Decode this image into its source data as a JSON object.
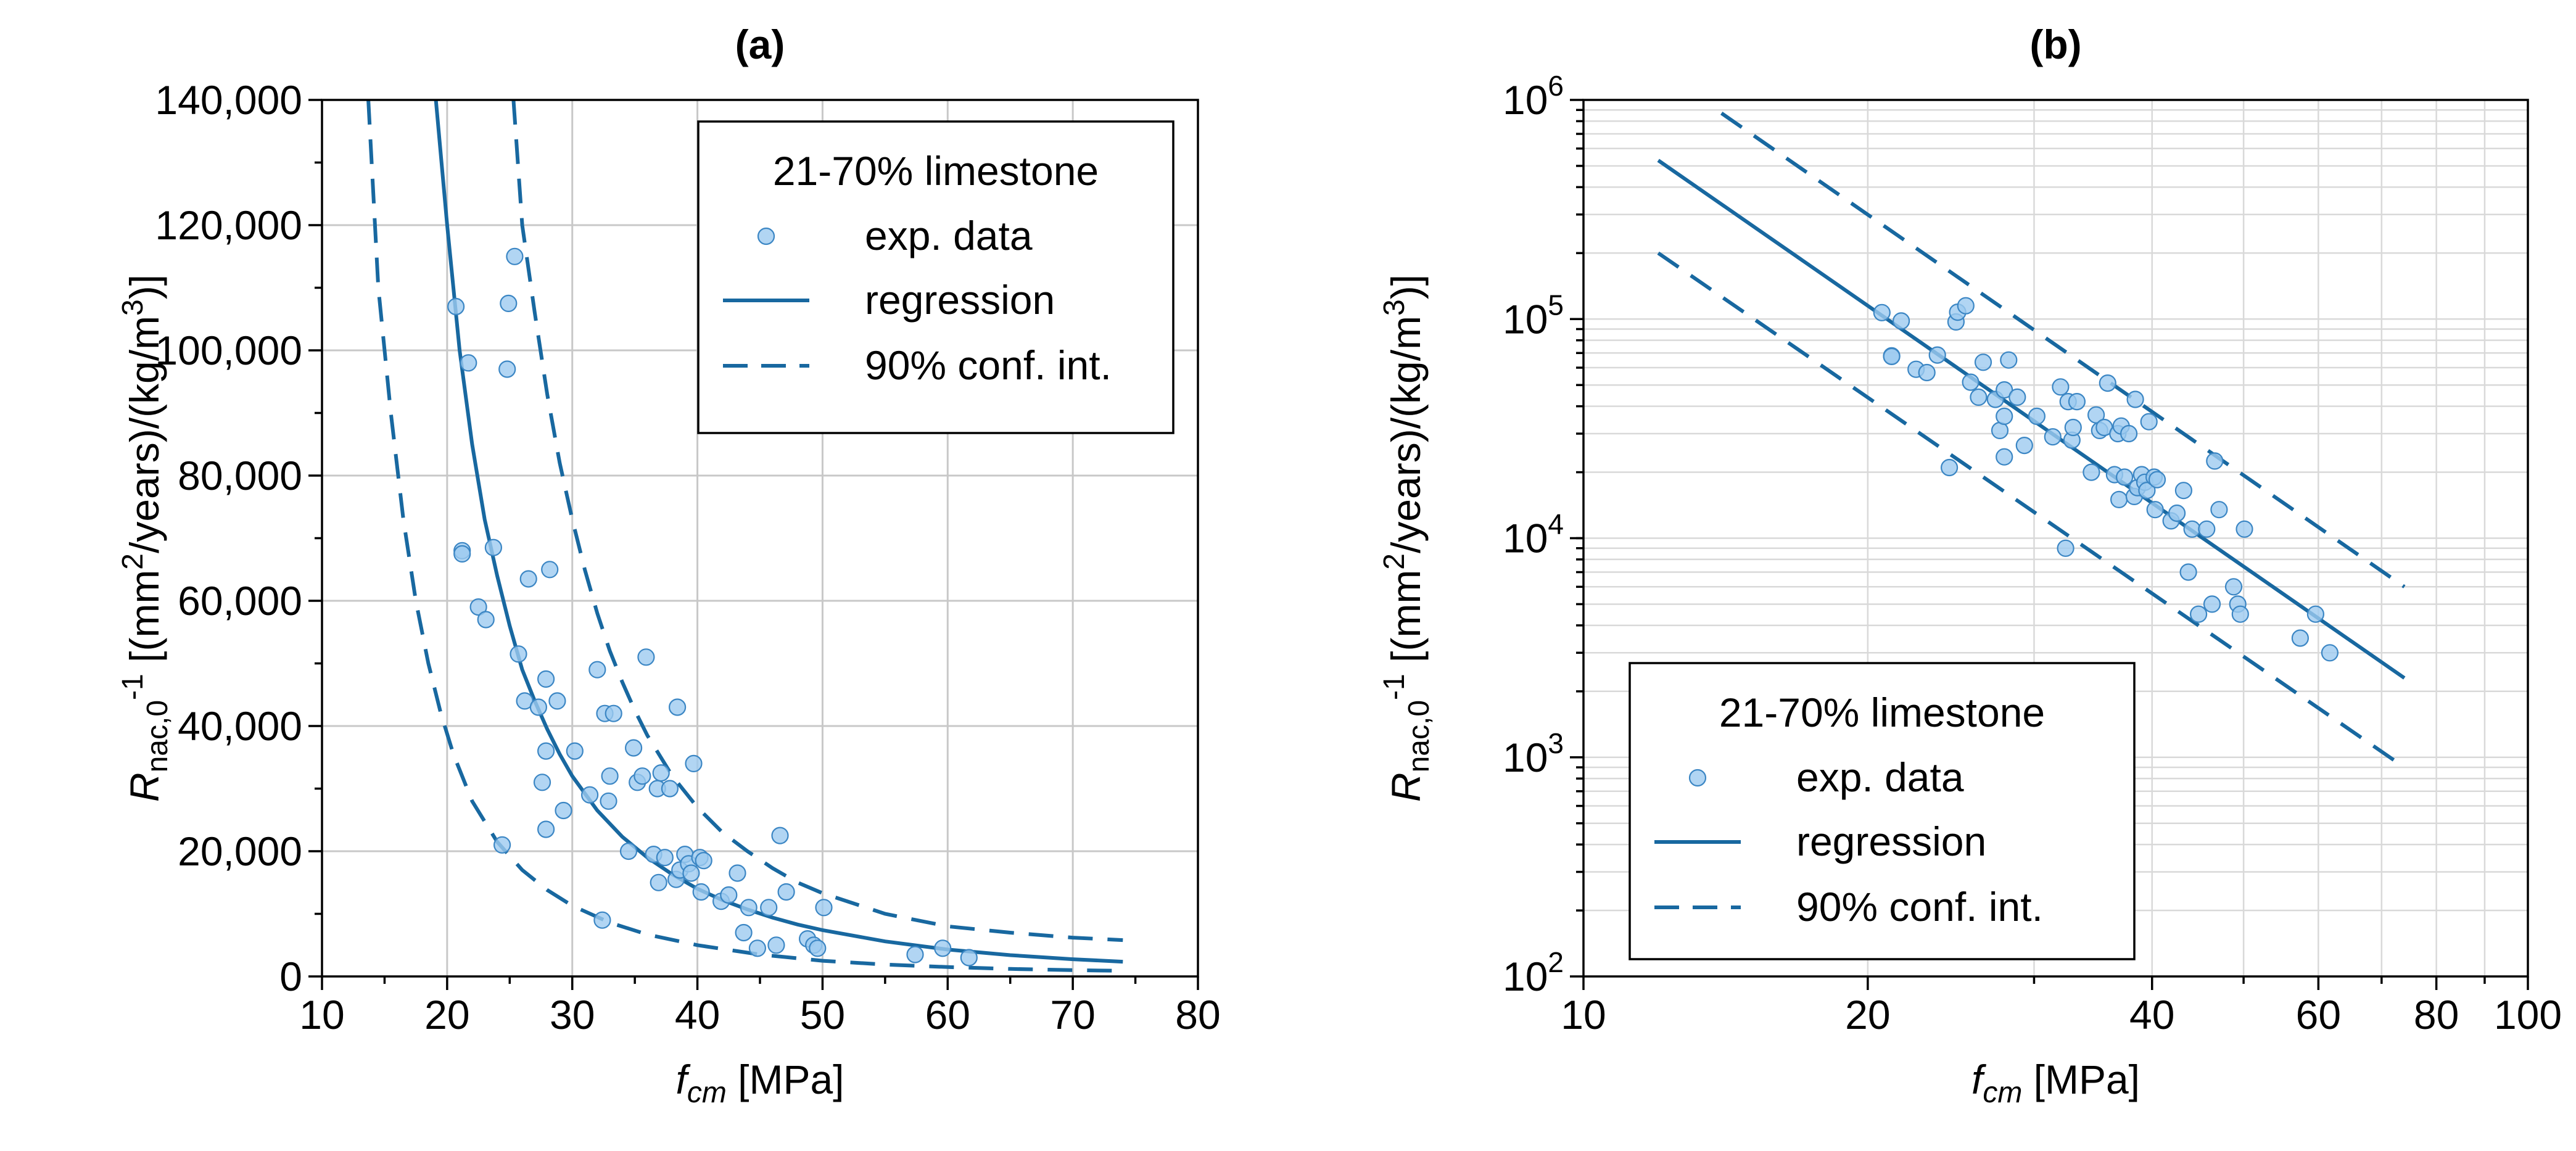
{
  "colors": {
    "series": "#1868a0",
    "points_fill": "#9ecbf0",
    "points_stroke": "#3b86c4",
    "grid": "#c8c8c8"
  },
  "legend": {
    "title": "21-70% limestone",
    "items": [
      "exp. data",
      "regression",
      "90% conf. int."
    ]
  },
  "chart_data": [
    {
      "panel": "(a)",
      "type": "scatter",
      "title": "(a)",
      "xlabel_main": "f",
      "xlabel_sub": "cm",
      "xlabel_unit": " [MPa]",
      "ylabel_main": "R",
      "ylabel_sub": "nac,0",
      "ylabel_sup": "-1",
      "ylabel_unit1": " [(mm",
      "ylabel_sup2": "2",
      "ylabel_unit2": "/years)/(kg/m",
      "ylabel_sup3": "3",
      "ylabel_unit3": ")]",
      "xscale": "linear",
      "yscale": "linear",
      "xlim": [
        10,
        80
      ],
      "ylim": [
        0,
        140000
      ],
      "xticks": [
        10,
        20,
        30,
        40,
        50,
        60,
        70,
        80
      ],
      "xtick_labels": [
        "10",
        "20",
        "30",
        "40",
        "50",
        "60",
        "70",
        "80"
      ],
      "yticks": [
        0,
        20000,
        40000,
        60000,
        80000,
        100000,
        120000,
        140000
      ],
      "ytick_labels": [
        "0",
        "20,000",
        "40,000",
        "60,000",
        "80,000",
        "100,000",
        "120,000",
        "140,000"
      ],
      "legend_position": "top-right",
      "series": [
        {
          "name": "exp. data",
          "kind": "points",
          "x": [
            20.7,
            21.2,
            21.2,
            21.7,
            22.5,
            23.1,
            23.7,
            24.4,
            24.8,
            24.9,
            25.4,
            25.7,
            26.2,
            26.5,
            27.3,
            27.6,
            27.9,
            27.9,
            27.9,
            28.2,
            28.8,
            29.3,
            30.2,
            31.4,
            32.0,
            32.4,
            32.6,
            32.9,
            33.0,
            33.3,
            34.5,
            34.9,
            35.2,
            35.6,
            35.9,
            36.5,
            36.8,
            36.9,
            37.1,
            37.4,
            37.8,
            38.3,
            38.4,
            38.6,
            39.0,
            39.3,
            39.5,
            39.7,
            40.2,
            40.3,
            40.5,
            41.9,
            42.5,
            43.2,
            43.7,
            44.1,
            44.8,
            45.7,
            46.3,
            46.6,
            47.1,
            48.8,
            49.3,
            49.6,
            50.1,
            57.4,
            59.6,
            61.7
          ],
          "y": [
            107000,
            68000,
            67500,
            98000,
            59000,
            57000,
            68500,
            21000,
            97000,
            107500,
            115000,
            51500,
            44000,
            63500,
            43000,
            31000,
            47500,
            23500,
            36000,
            65000,
            44000,
            26500,
            36000,
            29000,
            49000,
            9000,
            42000,
            28000,
            32000,
            42000,
            20000,
            36500,
            31000,
            32000,
            51000,
            19500,
            30000,
            15000,
            32500,
            19000,
            30000,
            15500,
            43000,
            17000,
            19500,
            18000,
            16500,
            34000,
            19000,
            13500,
            18500,
            12000,
            13000,
            16500,
            7000,
            11000,
            4500,
            11000,
            5000,
            22500,
            13500,
            6000,
            5000,
            4500,
            11000,
            3500,
            4500,
            3000
          ]
        },
        {
          "name": "regression",
          "kind": "line",
          "style": "solid",
          "x": [
            19.1,
            20,
            21,
            22,
            23,
            24,
            25,
            26,
            27,
            28,
            29,
            30,
            32,
            34,
            36,
            38,
            40,
            42,
            44,
            46,
            48,
            50,
            55,
            60,
            65,
            70,
            74
          ],
          "y": [
            140000,
            120000,
            100000,
            85000,
            73000,
            64000,
            56000,
            49000,
            44000,
            39500,
            35500,
            32000,
            26500,
            22300,
            19000,
            16300,
            14000,
            12200,
            10700,
            9400,
            8300,
            7400,
            5600,
            4300,
            3400,
            2750,
            2350
          ]
        },
        {
          "name": "90% conf. int. (upper)",
          "kind": "line",
          "style": "dashed",
          "x": [
            25.3,
            26,
            27,
            28,
            29,
            30,
            31,
            32,
            33,
            34,
            35,
            36,
            38,
            40,
            42,
            44,
            46,
            48,
            50,
            55,
            60,
            65,
            70,
            74
          ],
          "y": [
            140000,
            120000,
            106000,
            93000,
            82000,
            73000,
            65000,
            58000,
            52000,
            47000,
            42500,
            38500,
            32000,
            27000,
            23000,
            20000,
            17300,
            15000,
            13300,
            10000,
            8000,
            7000,
            6200,
            5800
          ]
        },
        {
          "name": "90% conf. int. (lower)",
          "kind": "line",
          "style": "dashed",
          "x": [
            13.7,
            14.5,
            15.5,
            16.5,
            17.5,
            18.5,
            19.5,
            20.5,
            22,
            24,
            26,
            28,
            30,
            33,
            36,
            40,
            45,
            50,
            55,
            60,
            65,
            70,
            74
          ],
          "y": [
            140000,
            110000,
            90000,
            73000,
            60000,
            50000,
            42000,
            35500,
            28000,
            21500,
            17000,
            13800,
            11300,
            8600,
            6700,
            5000,
            3500,
            2500,
            1900,
            1500,
            1200,
            1000,
            900
          ]
        }
      ]
    },
    {
      "panel": "(b)",
      "type": "scatter",
      "title": "(b)",
      "xlabel_main": "f",
      "xlabel_sub": "cm",
      "xlabel_unit": " [MPa]",
      "ylabel_main": "R",
      "ylabel_sub": "nac,0",
      "ylabel_sup": "-1",
      "ylabel_unit1": " [(mm",
      "ylabel_sup2": "2",
      "ylabel_unit2": "/years)/(kg/m",
      "ylabel_sup3": "3",
      "ylabel_unit3": ")]",
      "xscale": "log",
      "yscale": "log",
      "xlim": [
        10,
        100
      ],
      "ylim": [
        100,
        1000000
      ],
      "xticks": [
        10,
        20,
        40,
        60,
        80,
        100
      ],
      "xtick_labels": [
        "10",
        "20",
        "40",
        "60",
        "80",
        "100"
      ],
      "yticks": [
        100,
        1000,
        10000,
        100000,
        1000000
      ],
      "ytick_base": "10",
      "ytick_exponents": [
        "2",
        "3",
        "4",
        "5",
        "6"
      ],
      "legend_position": "bottom-left",
      "series": [
        {
          "name": "exp. data",
          "kind": "points",
          "same_as_panel_a": true
        },
        {
          "name": "regression",
          "kind": "line",
          "style": "solid",
          "x": [
            12,
            74
          ],
          "y": [
            530000,
            2300
          ]
        },
        {
          "name": "90% conf. int. (upper)",
          "kind": "line",
          "style": "dashed",
          "x": [
            14,
            74
          ],
          "y": [
            870000,
            6000
          ]
        },
        {
          "name": "90% conf. int. (lower)",
          "kind": "line",
          "style": "dashed",
          "x": [
            12,
            74
          ],
          "y": [
            200000,
            900
          ]
        }
      ]
    }
  ]
}
